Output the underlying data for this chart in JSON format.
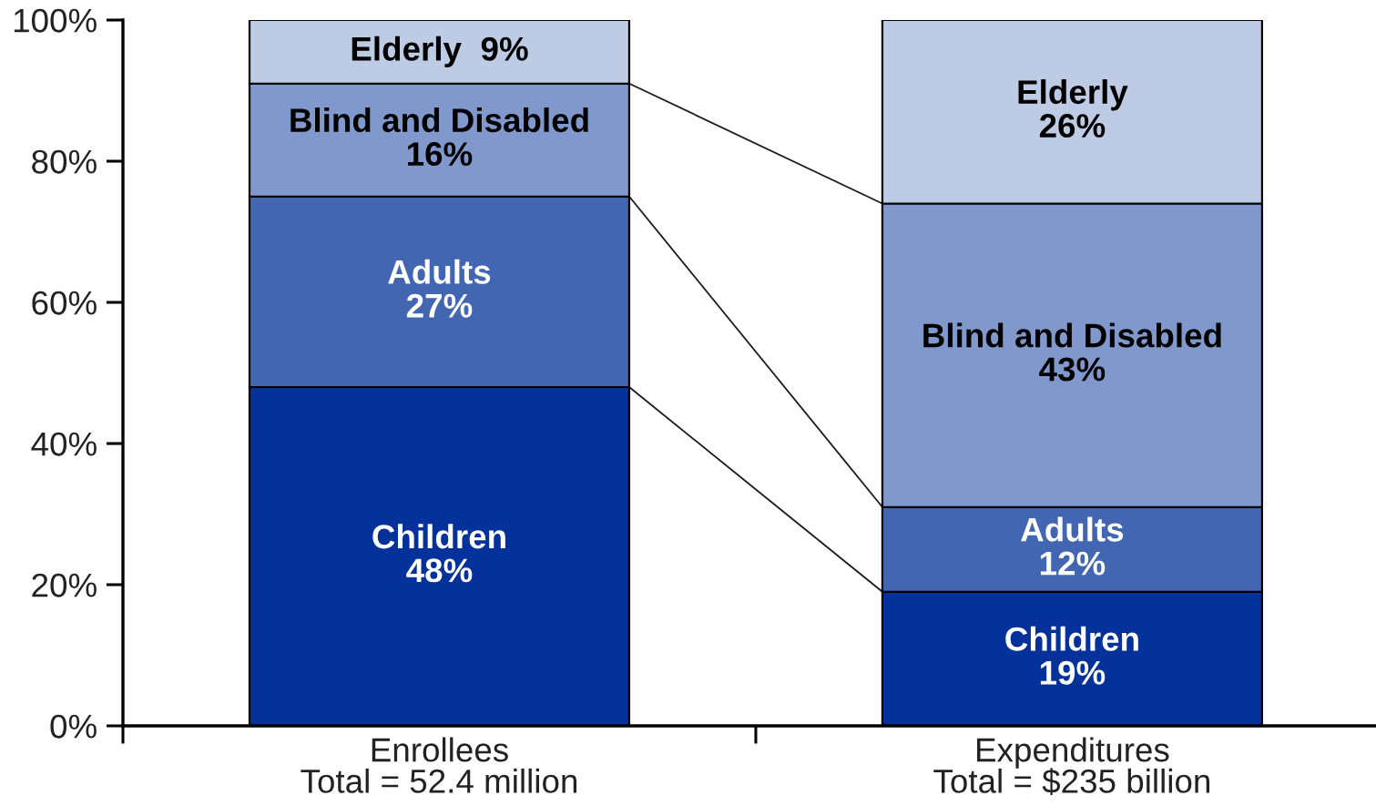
{
  "chart_data": {
    "type": "bar",
    "stacked": true,
    "categories": [
      "Enrollees\nTotal = 52.4 million",
      "Expenditures\nTotal = $235 billion"
    ],
    "series": [
      {
        "name": "Children",
        "color": "#05319a",
        "values": [
          48,
          19
        ],
        "value_labels": [
          "48%",
          "19%"
        ]
      },
      {
        "name": "Adults",
        "color": "#4266b2",
        "values": [
          27,
          12
        ],
        "value_labels": [
          "27%",
          "12%"
        ]
      },
      {
        "name": "Blind and Disabled",
        "color": "#8098cb",
        "values": [
          16,
          43
        ],
        "value_labels": [
          "16%",
          "43%"
        ]
      },
      {
        "name": "Elderly",
        "color": "#becbe5",
        "values": [
          9,
          26
        ],
        "value_labels": [
          "9%",
          "26%"
        ]
      }
    ],
    "ylim": [
      0,
      100
    ],
    "yticks": [
      {
        "value": 0,
        "label": "0%"
      },
      {
        "value": 20,
        "label": "20%"
      },
      {
        "value": 40,
        "label": "40%"
      },
      {
        "value": 60,
        "label": "60%"
      },
      {
        "value": 80,
        "label": "80%"
      },
      {
        "value": 100,
        "label": "100%"
      }
    ]
  }
}
